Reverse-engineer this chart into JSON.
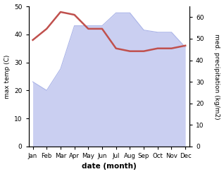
{
  "months": [
    "Jan",
    "Feb",
    "Mar",
    "Apr",
    "May",
    "Jun",
    "Jul",
    "Aug",
    "Sep",
    "Oct",
    "Nov",
    "Dec"
  ],
  "temperature": [
    38,
    42,
    48,
    47,
    42,
    42,
    35,
    34,
    34,
    35,
    35,
    36
  ],
  "precipitation": [
    30,
    26,
    36,
    56,
    56,
    56,
    62,
    62,
    54,
    53,
    53,
    46
  ],
  "temp_color": "#c0504d",
  "precip_fill_color": "#c5caf0",
  "precip_line_color": "#aab4e8",
  "temp_ylim": [
    0,
    50
  ],
  "precip_ylim": [
    0,
    65
  ],
  "temp_yticks": [
    0,
    10,
    20,
    30,
    40,
    50
  ],
  "precip_yticks": [
    0,
    10,
    20,
    30,
    40,
    50,
    60
  ],
  "ylabel_left": "max temp (C)",
  "ylabel_right": "med. precipitation (kg/m2)",
  "xlabel": "date (month)",
  "bg_color": "#ffffff"
}
